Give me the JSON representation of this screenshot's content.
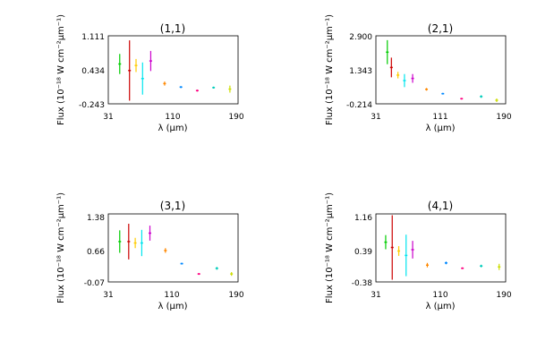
{
  "chart_data": [
    {
      "type": "scatter",
      "title": "(1,1)",
      "xlabel": "λ (μm)",
      "ylabel": "Flux (10⁻¹⁸ W cm⁻²μm⁻¹)",
      "xlim": [
        31,
        190
      ],
      "ylim": [
        -0.243,
        1.111
      ],
      "xticks": [
        "31",
        "110",
        "190"
      ],
      "yticks": [
        "-0.243",
        "0.434",
        "1.111"
      ],
      "series": [
        {
          "color": "#00cc00",
          "values": [
            {
              "x": 45,
              "y": 0.55,
              "err": 0.2
            }
          ]
        },
        {
          "color": "#cc0000",
          "values": [
            {
              "x": 57,
              "y": 0.42,
              "err": 0.6
            }
          ]
        },
        {
          "color": "#ffcc00",
          "values": [
            {
              "x": 65,
              "y": 0.52,
              "err": 0.13
            }
          ]
        },
        {
          "color": "#00e5ee",
          "values": [
            {
              "x": 73,
              "y": 0.26,
              "err": 0.32
            }
          ]
        },
        {
          "color": "#cc00cc",
          "values": [
            {
              "x": 83,
              "y": 0.61,
              "err": 0.2
            }
          ]
        },
        {
          "color": "#ff8800",
          "values": [
            {
              "x": 100,
              "y": 0.16,
              "err": 0.04
            }
          ]
        },
        {
          "color": "#0088ff",
          "values": [
            {
              "x": 120,
              "y": 0.09,
              "err": 0.02
            }
          ]
        },
        {
          "color": "#ff0080",
          "values": [
            {
              "x": 140,
              "y": 0.02,
              "err": 0.02
            }
          ]
        },
        {
          "color": "#00ccbb",
          "values": [
            {
              "x": 160,
              "y": 0.08,
              "err": 0.02
            }
          ]
        },
        {
          "color": "#ccdd00",
          "values": [
            {
              "x": 180,
              "y": 0.05,
              "err": 0.07
            }
          ]
        }
      ]
    },
    {
      "type": "scatter",
      "title": "(2,1)",
      "xlabel": "λ (μm)",
      "ylabel": "Flux (10⁻¹⁸ W cm⁻²μm⁻¹)",
      "xlim": [
        31,
        190
      ],
      "ylim": [
        -0.214,
        2.9
      ],
      "xticks": [
        "31",
        "111",
        "190"
      ],
      "yticks": [
        "-0.214",
        "1.343",
        "2.900"
      ],
      "series": [
        {
          "color": "#00cc00",
          "values": [
            {
              "x": 45,
              "y": 2.15,
              "err": 0.55
            }
          ]
        },
        {
          "color": "#cc0000",
          "values": [
            {
              "x": 50,
              "y": 1.45,
              "err": 0.45
            }
          ]
        },
        {
          "color": "#ffcc00",
          "values": [
            {
              "x": 58,
              "y": 1.1,
              "err": 0.15
            }
          ]
        },
        {
          "color": "#00e5ee",
          "values": [
            {
              "x": 66,
              "y": 0.85,
              "err": 0.3
            }
          ]
        },
        {
          "color": "#cc00cc",
          "values": [
            {
              "x": 76,
              "y": 0.95,
              "err": 0.2
            }
          ]
        },
        {
          "color": "#ff8800",
          "values": [
            {
              "x": 93,
              "y": 0.45,
              "err": 0.06
            }
          ]
        },
        {
          "color": "#0088ff",
          "values": [
            {
              "x": 113,
              "y": 0.25,
              "err": 0.04
            }
          ]
        },
        {
          "color": "#ff0080",
          "values": [
            {
              "x": 136,
              "y": 0.02,
              "err": 0.04
            }
          ]
        },
        {
          "color": "#00ccbb",
          "values": [
            {
              "x": 160,
              "y": 0.12,
              "err": 0.06
            }
          ]
        },
        {
          "color": "#ccdd00",
          "values": [
            {
              "x": 179,
              "y": -0.05,
              "err": 0.08
            }
          ]
        }
      ]
    },
    {
      "type": "scatter",
      "title": "(3,1)",
      "xlabel": "λ (μm)",
      "ylabel": "Flux (10⁻¹⁸ W cm⁻²μm⁻¹)",
      "xlim": [
        31,
        190
      ],
      "ylim": [
        -0.07,
        1.38
      ],
      "xticks": [
        "31",
        "110",
        "190"
      ],
      "yticks": [
        "-0.07",
        "0.66",
        "1.38"
      ],
      "series": [
        {
          "color": "#00cc00",
          "values": [
            {
              "x": 45,
              "y": 0.79,
              "err": 0.24
            }
          ]
        },
        {
          "color": "#cc0000",
          "values": [
            {
              "x": 56,
              "y": 0.79,
              "err": 0.38
            }
          ]
        },
        {
          "color": "#ffcc00",
          "values": [
            {
              "x": 64,
              "y": 0.76,
              "err": 0.11
            }
          ]
        },
        {
          "color": "#00e5ee",
          "values": [
            {
              "x": 72,
              "y": 0.76,
              "err": 0.28
            }
          ]
        },
        {
          "color": "#cc00cc",
          "values": [
            {
              "x": 82,
              "y": 0.97,
              "err": 0.16
            }
          ]
        },
        {
          "color": "#ff8800",
          "values": [
            {
              "x": 101,
              "y": 0.6,
              "err": 0.05
            }
          ]
        },
        {
          "color": "#0088ff",
          "values": [
            {
              "x": 121,
              "y": 0.32,
              "err": 0.02
            }
          ]
        },
        {
          "color": "#ff0080",
          "values": [
            {
              "x": 142,
              "y": 0.1,
              "err": 0.02
            }
          ]
        },
        {
          "color": "#00ccbb",
          "values": [
            {
              "x": 164,
              "y": 0.22,
              "err": 0.03
            }
          ]
        },
        {
          "color": "#ccdd00",
          "values": [
            {
              "x": 182,
              "y": 0.1,
              "err": 0.04
            }
          ]
        }
      ]
    },
    {
      "type": "scatter",
      "title": "(4,1)",
      "xlabel": "λ (μm)",
      "ylabel": "Flux (10⁻¹⁸ W cm⁻²μm⁻¹)",
      "xlim": [
        31,
        190
      ],
      "ylim": [
        -0.38,
        1.16
      ],
      "xticks": [
        "31",
        "110",
        "190"
      ],
      "yticks": [
        "-0.38",
        "0.39",
        "1.16"
      ],
      "series": [
        {
          "color": "#00cc00",
          "values": [
            {
              "x": 43,
              "y": 0.52,
              "err": 0.16
            }
          ]
        },
        {
          "color": "#cc0000",
          "values": [
            {
              "x": 51,
              "y": 0.4,
              "err": 0.73
            }
          ]
        },
        {
          "color": "#ffcc00",
          "values": [
            {
              "x": 59,
              "y": 0.32,
              "err": 0.11
            }
          ]
        },
        {
          "color": "#00e5ee",
          "values": [
            {
              "x": 68,
              "y": 0.22,
              "err": 0.47
            }
          ]
        },
        {
          "color": "#cc00cc",
          "values": [
            {
              "x": 76,
              "y": 0.35,
              "err": 0.2
            }
          ]
        },
        {
          "color": "#ff8800",
          "values": [
            {
              "x": 94,
              "y": 0.0,
              "err": 0.05
            }
          ]
        },
        {
          "color": "#0088ff",
          "values": [
            {
              "x": 117,
              "y": 0.05,
              "err": 0.03
            }
          ]
        },
        {
          "color": "#ff0080",
          "values": [
            {
              "x": 137,
              "y": -0.07,
              "err": 0.02
            }
          ]
        },
        {
          "color": "#00ccbb",
          "values": [
            {
              "x": 160,
              "y": -0.02,
              "err": 0.03
            }
          ]
        },
        {
          "color": "#ccdd00",
          "values": [
            {
              "x": 182,
              "y": -0.04,
              "err": 0.07
            }
          ]
        }
      ]
    }
  ]
}
